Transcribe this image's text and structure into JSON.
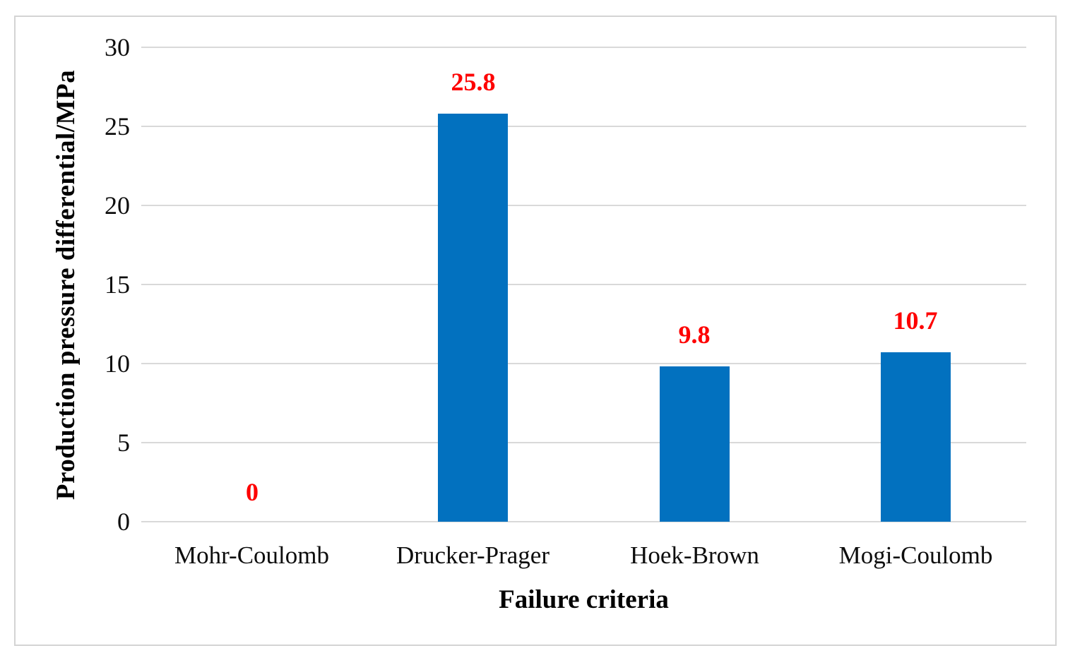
{
  "figure": {
    "background": "#FFFFFF",
    "border_color": "#D4D4D4"
  },
  "chart_data": {
    "type": "bar",
    "title": "",
    "xlabel": "Failure criteria",
    "ylabel": "Production pressure differential/MPa",
    "categories": [
      "Mohr-Coulomb",
      "Drucker-Prager",
      "Hoek-Brown",
      "Mogi-Coulomb"
    ],
    "values": [
      0,
      25.8,
      9.8,
      10.7
    ],
    "data_labels": [
      "0",
      "25.8",
      "9.8",
      "10.7"
    ],
    "ylim": [
      0,
      30
    ],
    "yticks": [
      0,
      5,
      10,
      15,
      20,
      25,
      30
    ],
    "grid": "horizontal",
    "legend": "none",
    "bar_color": "#0271BF",
    "data_label_color": "#FE0000",
    "gridline_color": "#D9D9D9",
    "axis_text_color": "#0D0D0D"
  }
}
